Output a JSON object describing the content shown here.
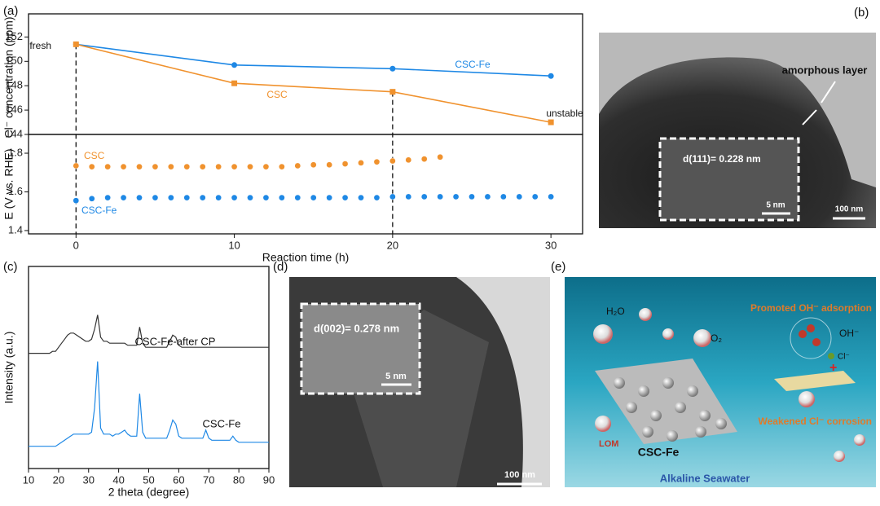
{
  "chart_data": [
    {
      "type": "line",
      "xlim": [
        -3,
        32
      ],
      "ylim": [
        144,
        153.9
      ],
      "yticks": [
        144,
        146,
        148,
        150,
        152
      ],
      "ylabel": "Cl⁻ concentration (ppm)",
      "vlines": [
        0,
        20
      ],
      "series": [
        {
          "name": "CSC-Fe",
          "color": "#1e88e5",
          "marker": "circle",
          "x": [
            0,
            10,
            20,
            30
          ],
          "values": [
            151.4,
            149.7,
            149.4,
            148.8
          ]
        },
        {
          "name": "CSC",
          "color": "#f0922e",
          "marker": "square",
          "x": [
            0,
            10,
            20,
            30
          ],
          "values": [
            151.4,
            148.2,
            147.5,
            145.0
          ]
        }
      ],
      "annotations": [
        {
          "text": "fresh",
          "color": "#111"
        },
        {
          "text": "CSC-Fe",
          "color": "#1e88e5"
        },
        {
          "text": "CSC",
          "color": "#f0922e"
        },
        {
          "text": "unstable",
          "color": "#111"
        }
      ]
    },
    {
      "type": "scatter",
      "xlim": [
        -3,
        32
      ],
      "ylim": [
        1.383,
        1.897
      ],
      "yticks": [
        1.4,
        1.6,
        1.8
      ],
      "xticks": [
        0,
        10,
        20,
        30
      ],
      "xlabel": "Reaction time (h)",
      "ylabel": "E (V vs. RHE)",
      "series": [
        {
          "name": "CSC",
          "color": "#f0922e",
          "x": [
            0,
            1,
            2,
            3,
            4,
            5,
            6,
            7,
            8,
            9,
            10,
            11,
            12,
            13,
            14,
            15,
            16,
            17,
            18,
            19,
            20,
            21,
            22,
            23
          ],
          "values": [
            1.735,
            1.73,
            1.73,
            1.73,
            1.73,
            1.73,
            1.73,
            1.73,
            1.73,
            1.73,
            1.73,
            1.73,
            1.73,
            1.73,
            1.735,
            1.74,
            1.74,
            1.745,
            1.75,
            1.755,
            1.76,
            1.765,
            1.77,
            1.78
          ]
        },
        {
          "name": "CSC-Fe",
          "color": "#1e88e5",
          "x": [
            0,
            1,
            2,
            3,
            4,
            5,
            6,
            7,
            8,
            9,
            10,
            11,
            12,
            13,
            14,
            15,
            16,
            17,
            18,
            19,
            20,
            21,
            22,
            23,
            24,
            25,
            26,
            27,
            28,
            29,
            30
          ],
          "values": [
            1.555,
            1.565,
            1.57,
            1.57,
            1.57,
            1.57,
            1.57,
            1.57,
            1.57,
            1.57,
            1.57,
            1.57,
            1.57,
            1.57,
            1.57,
            1.57,
            1.57,
            1.57,
            1.57,
            1.57,
            1.575,
            1.575,
            1.575,
            1.575,
            1.575,
            1.575,
            1.575,
            1.575,
            1.575,
            1.575,
            1.575
          ]
        }
      ]
    },
    {
      "type": "line",
      "xlim": [
        10,
        90
      ],
      "ylim": [
        0,
        1
      ],
      "xticks": [
        10,
        20,
        30,
        40,
        50,
        60,
        70,
        80,
        90
      ],
      "xlabel": "2 theta (degree)",
      "ylabel": "Intensity (a.u.)",
      "x": [
        10,
        11,
        12,
        13,
        14,
        15,
        16,
        17,
        18,
        19,
        20,
        21,
        22,
        23,
        24,
        25,
        26,
        27,
        28,
        29,
        30,
        31,
        32,
        33,
        34,
        35,
        36,
        37,
        38,
        39,
        40,
        41,
        42,
        43,
        44,
        45,
        46,
        47,
        48,
        49,
        50,
        51,
        52,
        53,
        54,
        55,
        56,
        57,
        58,
        59,
        60,
        61,
        62,
        63,
        64,
        65,
        66,
        67,
        68,
        69,
        70,
        71,
        72,
        73,
        74,
        75,
        76,
        77,
        78,
        79,
        80,
        81,
        82,
        83,
        84,
        85,
        86,
        87,
        88,
        89,
        90
      ],
      "series": [
        {
          "name": "CSC-Fe-after CP",
          "color": "#333333",
          "values": [
            0.57,
            0.57,
            0.57,
            0.57,
            0.57,
            0.57,
            0.57,
            0.57,
            0.58,
            0.58,
            0.6,
            0.62,
            0.64,
            0.66,
            0.67,
            0.67,
            0.66,
            0.65,
            0.64,
            0.63,
            0.63,
            0.64,
            0.69,
            0.76,
            0.65,
            0.63,
            0.63,
            0.62,
            0.62,
            0.62,
            0.62,
            0.62,
            0.62,
            0.61,
            0.61,
            0.61,
            0.61,
            0.7,
            0.62,
            0.6,
            0.6,
            0.6,
            0.6,
            0.6,
            0.6,
            0.6,
            0.6,
            0.63,
            0.66,
            0.65,
            0.61,
            0.6,
            0.6,
            0.6,
            0.6,
            0.6,
            0.6,
            0.6,
            0.6,
            0.6,
            0.6,
            0.6,
            0.6,
            0.6,
            0.6,
            0.6,
            0.6,
            0.6,
            0.6,
            0.6,
            0.6,
            0.6,
            0.6,
            0.6,
            0.6,
            0.6,
            0.6,
            0.6,
            0.6,
            0.6,
            0.6
          ]
        },
        {
          "name": "CSC-Fe",
          "color": "#1e88e5",
          "values": [
            0.11,
            0.11,
            0.11,
            0.11,
            0.11,
            0.11,
            0.11,
            0.11,
            0.11,
            0.11,
            0.12,
            0.13,
            0.14,
            0.15,
            0.16,
            0.17,
            0.17,
            0.17,
            0.17,
            0.17,
            0.17,
            0.18,
            0.3,
            0.53,
            0.2,
            0.17,
            0.17,
            0.17,
            0.16,
            0.17,
            0.17,
            0.18,
            0.19,
            0.17,
            0.16,
            0.16,
            0.16,
            0.37,
            0.18,
            0.15,
            0.15,
            0.15,
            0.15,
            0.15,
            0.15,
            0.15,
            0.15,
            0.19,
            0.24,
            0.22,
            0.16,
            0.15,
            0.15,
            0.15,
            0.15,
            0.15,
            0.15,
            0.15,
            0.15,
            0.19,
            0.15,
            0.14,
            0.14,
            0.14,
            0.14,
            0.14,
            0.14,
            0.14,
            0.16,
            0.14,
            0.13,
            0.13,
            0.13,
            0.13,
            0.13,
            0.13,
            0.13,
            0.13,
            0.13,
            0.13,
            0.13
          ]
        }
      ]
    }
  ],
  "panels": {
    "labels": [
      "(a)",
      "(b)",
      "(c)",
      "(d)",
      "(e)"
    ],
    "b": {
      "annotation": "amorphous layer",
      "inset": "d(111)= 0.228 nm",
      "inset_scale": "5 nm",
      "scale": "100 nm"
    },
    "d": {
      "inset": "d(002)= 0.278 nm",
      "inset_scale": "5 nm",
      "scale": "100 nm"
    },
    "e": {
      "h2o": "H₂O",
      "o2": "O₂",
      "promoted": "Promoted OH⁻ adsorption",
      "oh": "OH⁻",
      "cl": "Cl⁻",
      "material": "CSC-Fe",
      "lom": "LOM",
      "weakened": "Weakened Cl⁻ corrosion",
      "medium": "Alkaline Seawater"
    }
  }
}
